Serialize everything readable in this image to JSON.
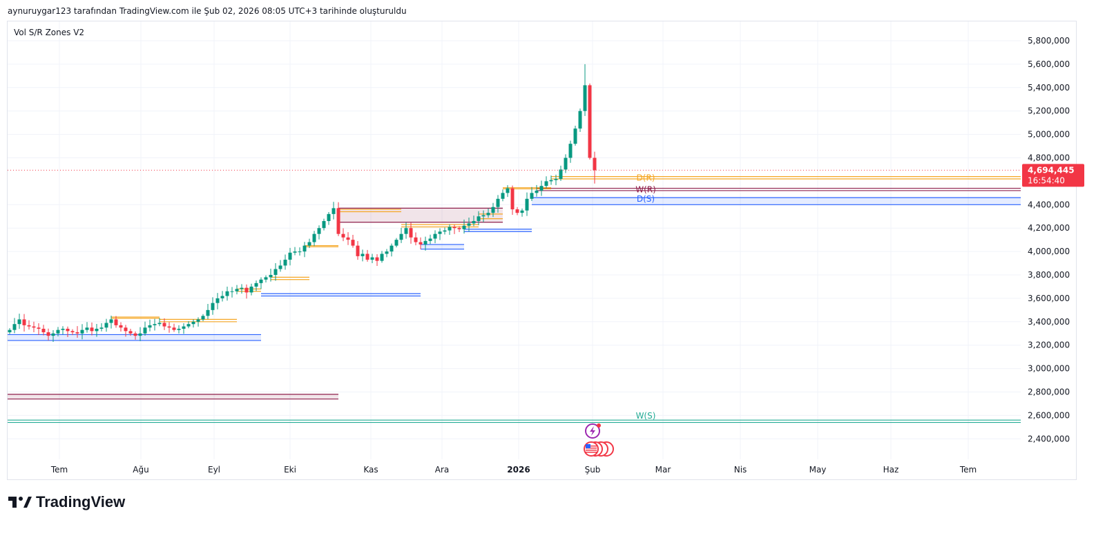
{
  "caption": "aynuruygar123 tarafından TradingView.com ile Şub 02, 2026 08:05 UTC+3 tarihinde oluşturuldu",
  "indicator_name": "Vol S/R Zones V2",
  "brand": "TradingView",
  "last_price": {
    "value": "4,694,445",
    "countdown": "16:54:40",
    "price": 4694.445
  },
  "colors": {
    "up": "#089981",
    "down": "#f23645",
    "orange": "#f5a623",
    "maroon": "#8e1e4a",
    "blue": "#2962ff",
    "teal": "#22ab94",
    "purple": "#8e5e9e"
  },
  "chart_data": {
    "type": "candlestick",
    "unit": "thousands",
    "price_ticks": [
      "5,800,000",
      "5,600,000",
      "5,400,000",
      "5,200,000",
      "5,000,000",
      "4,800,000",
      "4,400,000",
      "4,200,000",
      "4,000,000",
      "3,800,000",
      "3,600,000",
      "3,400,000",
      "3,200,000",
      "3,000,000",
      "2,800,000",
      "2,600,000",
      "2,400,000"
    ],
    "price_tick_values": [
      5800,
      5600,
      5400,
      5200,
      5000,
      4800,
      4400,
      4200,
      4000,
      3800,
      3600,
      3400,
      3200,
      3000,
      2800,
      2600,
      2400
    ],
    "time_ticks": [
      "Tem",
      "Ağu",
      "Eyl",
      "Eki",
      "Kas",
      "Ara",
      "2026",
      "Şub",
      "Mar",
      "Nis",
      "May",
      "Haz",
      "Tem"
    ],
    "closes": [
      3330,
      3380,
      3420,
      3370,
      3360,
      3350,
      3340,
      3310,
      3280,
      3300,
      3330,
      3340,
      3320,
      3310,
      3300,
      3330,
      3350,
      3320,
      3340,
      3350,
      3390,
      3420,
      3370,
      3350,
      3320,
      3300,
      3280,
      3300,
      3350,
      3370,
      3380,
      3390,
      3360,
      3350,
      3330,
      3340,
      3360,
      3380,
      3400,
      3420,
      3450,
      3500,
      3560,
      3600,
      3620,
      3660,
      3660,
      3680,
      3690,
      3650,
      3700,
      3730,
      3760,
      3780,
      3800,
      3850,
      3880,
      3930,
      3990,
      4000,
      4000,
      4050,
      4080,
      4150,
      4200,
      4260,
      4320,
      4370,
      4150,
      4120,
      4100,
      4050,
      3960,
      3980,
      3930,
      3950,
      3920,
      3980,
      4000,
      4050,
      4100,
      4150,
      4200,
      4120,
      4080,
      4060,
      4090,
      4110,
      4150,
      4170,
      4180,
      4210,
      4200,
      4190,
      4220,
      4240,
      4260,
      4300,
      4310,
      4330,
      4380,
      4450,
      4500,
      4540,
      4360,
      4330,
      4350,
      4450,
      4500,
      4520,
      4560,
      4600,
      4610,
      4620,
      4700,
      4800,
      4920,
      5050,
      5200,
      5420,
      4800,
      4694
    ],
    "peak_high": 5600,
    "zones": [
      {
        "label": "D(R)",
        "color": "orange",
        "top": 4640,
        "bottom": 4620,
        "from": 112,
        "to": null,
        "fill": false
      },
      {
        "label": "W(R)",
        "color": "maroon",
        "top": 4540,
        "bottom": 4520,
        "from": 109,
        "to": null,
        "fill": false
      },
      {
        "label": "D(S)",
        "color": "blue",
        "top": 4460,
        "bottom": 4400,
        "from": 108,
        "to": null,
        "fill": true
      },
      {
        "label": "W(S)",
        "color": "teal",
        "top": 2560,
        "bottom": 2540,
        "from": -1,
        "to": null,
        "fill": false
      },
      {
        "label": "",
        "color": "maroon",
        "top": 2780,
        "bottom": 2740,
        "from": -1,
        "to": 68,
        "fill": true
      },
      {
        "label": "",
        "color": "blue",
        "top": 3290,
        "bottom": 3240,
        "from": -1,
        "to": 52,
        "fill": true
      },
      {
        "label": "",
        "color": "orange",
        "top": 3420,
        "bottom": 3400,
        "from": 31,
        "to": 47,
        "fill": false
      },
      {
        "label": "",
        "color": "orange",
        "top": 3440,
        "bottom": 3430,
        "from": 21,
        "to": 31,
        "fill": false
      },
      {
        "label": "",
        "color": "blue",
        "top": 3640,
        "bottom": 3620,
        "from": 52,
        "to": 85,
        "fill": false
      },
      {
        "label": "",
        "color": "orange",
        "top": 3680,
        "bottom": 3660,
        "from": 47,
        "to": 52,
        "fill": false
      },
      {
        "label": "",
        "color": "orange",
        "top": 3780,
        "bottom": 3760,
        "from": 54,
        "to": 62,
        "fill": false
      },
      {
        "label": "",
        "color": "orange",
        "top": 4050,
        "bottom": 4040,
        "from": 61,
        "to": 68,
        "fill": false
      },
      {
        "label": "",
        "color": "maroon",
        "top": 4370,
        "bottom": 4250,
        "from": 68,
        "to": 102,
        "fill": true
      },
      {
        "label": "",
        "color": "orange",
        "top": 4360,
        "bottom": 4340,
        "from": 68,
        "to": 81,
        "fill": false
      },
      {
        "label": "",
        "color": "orange",
        "top": 4230,
        "bottom": 4210,
        "from": 81,
        "to": 97,
        "fill": false
      },
      {
        "label": "",
        "color": "blue",
        "top": 4060,
        "bottom": 4020,
        "from": 85,
        "to": 94,
        "fill": true
      },
      {
        "label": "",
        "color": "blue",
        "top": 4190,
        "bottom": 4170,
        "from": 94,
        "to": 108,
        "fill": false
      },
      {
        "label": "",
        "color": "orange",
        "top": 4320,
        "bottom": 4280,
        "from": 97,
        "to": 102,
        "fill": false
      },
      {
        "label": "",
        "color": "orange",
        "top": 4545,
        "bottom": 4535,
        "from": 102,
        "to": 112,
        "fill": false
      }
    ]
  }
}
